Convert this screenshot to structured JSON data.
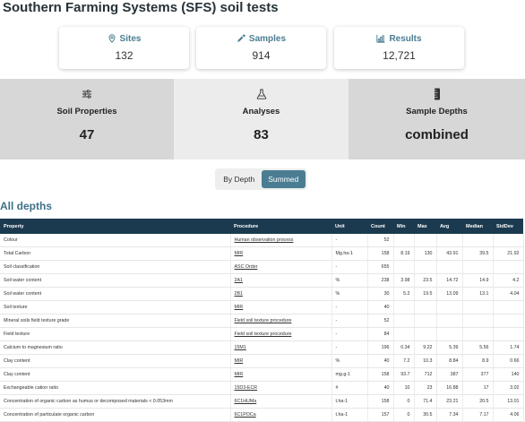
{
  "header": {
    "title": "Southern Farming Systems (SFS) soil tests"
  },
  "stats": [
    {
      "id": "sites",
      "label": "Sites",
      "value": "132",
      "icon": "map-pin-icon"
    },
    {
      "id": "samples",
      "label": "Samples",
      "value": "914",
      "icon": "pipette-icon"
    },
    {
      "id": "results",
      "label": "Results",
      "value": "12,721",
      "icon": "bar-chart-icon"
    }
  ],
  "panels": [
    {
      "id": "soil-properties",
      "label": "Soil Properties",
      "value": "47",
      "icon": "sliders-icon",
      "bg": "#d7d7d7"
    },
    {
      "id": "analyses",
      "label": "Analyses",
      "value": "83",
      "icon": "flask-icon",
      "bg": "#ececec"
    },
    {
      "id": "sample-depths",
      "label": "Sample Depths",
      "value": "combined",
      "icon": "depth-gauge-icon",
      "bg": "#d7d7d7"
    }
  ],
  "toggle": {
    "by_depth": "By Depth",
    "summed": "Summed",
    "active": "summed"
  },
  "section": {
    "title": "All depths"
  },
  "table": {
    "columns": [
      "Property",
      "Procedure",
      "Unit",
      "Count",
      "Min",
      "Max",
      "Avg",
      "Median",
      "StdDev"
    ],
    "rows": [
      [
        "Colour",
        "Human observation process",
        "-",
        "52",
        "",
        "",
        "",
        "",
        ""
      ],
      [
        "Total Carbon",
        "MIR",
        "Mg.ha-1",
        "158",
        "8.19",
        "130",
        "43.91",
        "39.5",
        "21.92"
      ],
      [
        "Soil classification",
        "ASC Order",
        "-",
        "655",
        "",
        "",
        "",
        "",
        ""
      ],
      [
        "Soil water content",
        "2A1",
        "%",
        "238",
        "3.98",
        "23.5",
        "14.72",
        "14.9",
        "4.2"
      ],
      [
        "Soil water content",
        "2B1",
        "%",
        "30",
        "5.2",
        "19.5",
        "13.09",
        "13.1",
        "4.04"
      ],
      [
        "Soil texture",
        "MIR",
        "-",
        "40",
        "",
        "",
        "",
        "",
        ""
      ],
      [
        "Mineral soils field texture grade",
        "Field soil texture procedure",
        "-",
        "52",
        "",
        "",
        "",
        "",
        ""
      ],
      [
        "Field texture",
        "Field soil texture procedure",
        "-",
        "84",
        "",
        "",
        "",
        "",
        ""
      ],
      [
        "Calcium to magnesium ratio",
        "15M1",
        "-",
        "196",
        "0.34",
        "9.22",
        "5.39",
        "5.56",
        "1.74"
      ],
      [
        "Clay content",
        "MIR",
        "%",
        "40",
        "7.2",
        "10.3",
        "8.84",
        "8.9",
        "0.66"
      ],
      [
        "Clay content",
        "MIR",
        "mg.g-1",
        "158",
        "93.7",
        "712",
        "387",
        "377",
        "140"
      ],
      [
        "Exchangeable cation ratio",
        "15D3-ECR",
        "#",
        "40",
        "10",
        "23",
        "16.88",
        "17",
        "3.02"
      ],
      [
        "Concentration of organic carbon as humus or decomposed materials < 0.053mm",
        "6C1HUMa",
        "t.ha-1",
        "158",
        "0",
        "71.4",
        "23.21",
        "20.5",
        "13.01"
      ],
      [
        "Concentration of particulate organic carbon",
        "6C1POCa",
        "t.ha-1",
        "157",
        "0",
        "30.5",
        "7.34",
        "7.17",
        "4.06"
      ]
    ]
  }
}
